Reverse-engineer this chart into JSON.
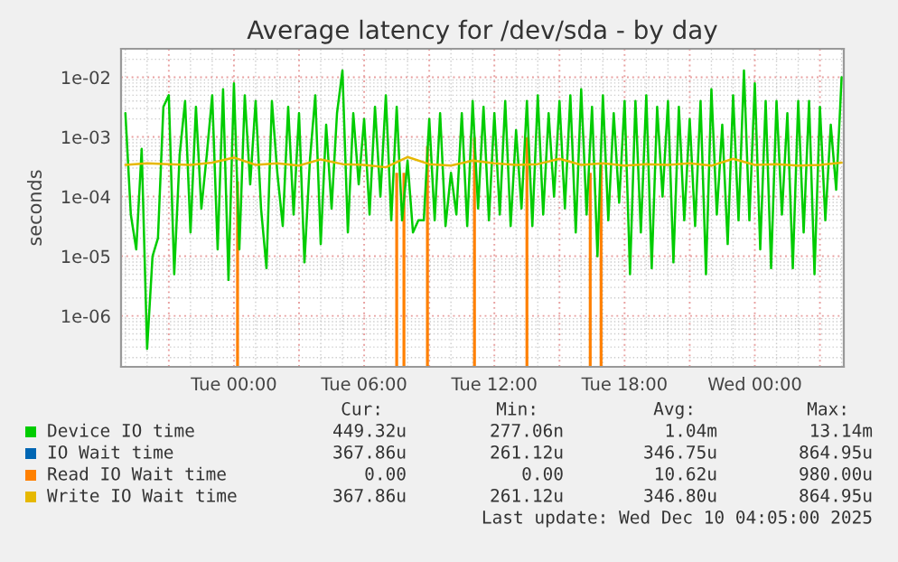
{
  "chart_data": {
    "type": "line",
    "title": "Average latency for /dev/sda - by day",
    "ylabel": "seconds",
    "log": "y",
    "grid": true,
    "legend": "bottom",
    "xlim": [
      "2025-12-08T18:48",
      "2025-12-10T04:06"
    ],
    "xticks": [
      {
        "value": "2025-12-08T21:00",
        "label": null
      },
      {
        "value": "2025-12-09T00:00",
        "label": "Tue 00:00"
      },
      {
        "value": "2025-12-09T03:00",
        "label": null
      },
      {
        "value": "2025-12-09T06:00",
        "label": "Tue 06:00"
      },
      {
        "value": "2025-12-09T09:00",
        "label": null
      },
      {
        "value": "2025-12-09T12:00",
        "label": "Tue 12:00"
      },
      {
        "value": "2025-12-09T15:00",
        "label": null
      },
      {
        "value": "2025-12-09T18:00",
        "label": "Tue 18:00"
      },
      {
        "value": "2025-12-09T21:00",
        "label": null
      },
      {
        "value": "2025-12-10T00:00",
        "label": "Wed 00:00"
      },
      {
        "value": "2025-12-10T03:00",
        "label": null
      }
    ],
    "ylim": [
      1.4e-07,
      0.03
    ],
    "yticks": [
      {
        "value": 1e-06,
        "label": "1e-06"
      },
      {
        "value": 1e-05,
        "label": "1e-05"
      },
      {
        "value": 0.0001,
        "label": "1e-04"
      },
      {
        "value": 0.001,
        "label": "1e-03"
      },
      {
        "value": 0.01,
        "label": "1e-02"
      }
    ],
    "series": [
      {
        "name": "Device IO time",
        "color": "#00cc00",
        "x": [
          "2025-12-08T19:00",
          "2025-12-08T19:15",
          "2025-12-08T19:30",
          "2025-12-08T19:45",
          "2025-12-08T20:00",
          "2025-12-08T20:15",
          "2025-12-08T20:30",
          "2025-12-08T20:45",
          "2025-12-08T21:00",
          "2025-12-08T21:15",
          "2025-12-08T21:30",
          "2025-12-08T21:45",
          "2025-12-08T22:00",
          "2025-12-08T22:15",
          "2025-12-08T22:30",
          "2025-12-08T22:45",
          "2025-12-08T23:00",
          "2025-12-08T23:15",
          "2025-12-08T23:30",
          "2025-12-08T23:45",
          "2025-12-09T00:00",
          "2025-12-09T00:15",
          "2025-12-09T00:30",
          "2025-12-09T00:45",
          "2025-12-09T01:00",
          "2025-12-09T01:15",
          "2025-12-09T01:30",
          "2025-12-09T01:45",
          "2025-12-09T02:00",
          "2025-12-09T02:15",
          "2025-12-09T02:30",
          "2025-12-09T02:45",
          "2025-12-09T03:00",
          "2025-12-09T03:15",
          "2025-12-09T03:30",
          "2025-12-09T03:45",
          "2025-12-09T04:00",
          "2025-12-09T04:15",
          "2025-12-09T04:30",
          "2025-12-09T04:45",
          "2025-12-09T05:00",
          "2025-12-09T05:15",
          "2025-12-09T05:30",
          "2025-12-09T05:45",
          "2025-12-09T06:00",
          "2025-12-09T06:15",
          "2025-12-09T06:30",
          "2025-12-09T06:45",
          "2025-12-09T07:00",
          "2025-12-09T07:15",
          "2025-12-09T07:30",
          "2025-12-09T07:45",
          "2025-12-09T08:00",
          "2025-12-09T08:15",
          "2025-12-09T08:30",
          "2025-12-09T08:45",
          "2025-12-09T09:00",
          "2025-12-09T09:15",
          "2025-12-09T09:30",
          "2025-12-09T09:45",
          "2025-12-09T10:00",
          "2025-12-09T10:15",
          "2025-12-09T10:30",
          "2025-12-09T10:45",
          "2025-12-09T11:00",
          "2025-12-09T11:15",
          "2025-12-09T11:30",
          "2025-12-09T11:45",
          "2025-12-09T12:00",
          "2025-12-09T12:15",
          "2025-12-09T12:30",
          "2025-12-09T12:45",
          "2025-12-09T13:00",
          "2025-12-09T13:15",
          "2025-12-09T13:30",
          "2025-12-09T13:45",
          "2025-12-09T14:00",
          "2025-12-09T14:15",
          "2025-12-09T14:30",
          "2025-12-09T14:45",
          "2025-12-09T15:00",
          "2025-12-09T15:15",
          "2025-12-09T15:30",
          "2025-12-09T15:45",
          "2025-12-09T16:00",
          "2025-12-09T16:15",
          "2025-12-09T16:30",
          "2025-12-09T16:45",
          "2025-12-09T17:00",
          "2025-12-09T17:15",
          "2025-12-09T17:30",
          "2025-12-09T17:45",
          "2025-12-09T18:00",
          "2025-12-09T18:15",
          "2025-12-09T18:30",
          "2025-12-09T18:45",
          "2025-12-09T19:00",
          "2025-12-09T19:15",
          "2025-12-09T19:30",
          "2025-12-09T19:45",
          "2025-12-09T20:00",
          "2025-12-09T20:15",
          "2025-12-09T20:30",
          "2025-12-09T20:45",
          "2025-12-09T21:00",
          "2025-12-09T21:15",
          "2025-12-09T21:30",
          "2025-12-09T21:45",
          "2025-12-09T22:00",
          "2025-12-09T22:15",
          "2025-12-09T22:30",
          "2025-12-09T22:45",
          "2025-12-09T23:00",
          "2025-12-09T23:15",
          "2025-12-09T23:30",
          "2025-12-09T23:45",
          "2025-12-10T00:00",
          "2025-12-10T00:15",
          "2025-12-10T00:30",
          "2025-12-10T00:45",
          "2025-12-10T01:00",
          "2025-12-10T01:15",
          "2025-12-10T01:30",
          "2025-12-10T01:45",
          "2025-12-10T02:00",
          "2025-12-10T02:15",
          "2025-12-10T02:30",
          "2025-12-10T02:45",
          "2025-12-10T03:00",
          "2025-12-10T03:15",
          "2025-12-10T03:30",
          "2025-12-10T03:45",
          "2025-12-10T04:00"
        ],
        "values": [
          0.0025,
          5e-05,
          1.3e-05,
          0.00063,
          2.8e-07,
          1e-05,
          2e-05,
          0.0032,
          0.005,
          5e-06,
          0.0005,
          0.004,
          2.5e-05,
          0.0032,
          6.3e-05,
          0.0005,
          0.005,
          1.3e-05,
          0.0063,
          4e-06,
          0.0079,
          1.3e-05,
          0.005,
          0.00016,
          0.004,
          6.3e-05,
          6.3e-06,
          0.004,
          0.00025,
          3.2e-05,
          0.0032,
          5e-05,
          0.0025,
          7.9e-06,
          0.0004,
          0.005,
          1.6e-05,
          0.0016,
          6.3e-05,
          0.0025,
          0.013,
          2.5e-05,
          0.0025,
          0.00016,
          0.002,
          5e-05,
          0.0032,
          0.0001,
          0.005,
          4e-05,
          0.0032,
          4e-05,
          0.0004,
          2.5e-05,
          4e-05,
          4e-05,
          0.002,
          4e-05,
          0.0025,
          3.2e-05,
          0.00025,
          5e-05,
          0.0025,
          3.2e-05,
          0.004,
          6.3e-05,
          0.0032,
          4e-05,
          0.0025,
          5e-05,
          0.004,
          3.2e-05,
          0.0013,
          6.3e-05,
          0.004,
          3.2e-05,
          0.005,
          5e-05,
          0.0025,
          0.0001,
          0.004,
          6.3e-05,
          0.005,
          2.5e-05,
          0.0063,
          5e-05,
          0.0032,
          1e-05,
          0.005,
          4e-05,
          0.0025,
          7.9e-05,
          0.004,
          5e-06,
          0.004,
          2.5e-05,
          0.005,
          6.3e-06,
          0.0032,
          0.0001,
          0.004,
          7.9e-06,
          0.0032,
          4e-05,
          0.002,
          3.2e-05,
          0.004,
          5e-06,
          0.0063,
          5e-05,
          0.0016,
          1.6e-05,
          0.005,
          4e-05,
          0.013,
          4e-05,
          0.0079,
          1.3e-05,
          0.004,
          6.3e-06,
          0.004,
          5e-05,
          0.0025,
          6.3e-06,
          0.004,
          2.5e-05,
          0.004,
          5e-06,
          0.0032,
          4e-05,
          0.0016,
          0.00013,
          0.01
        ]
      },
      {
        "name": "IO Wait time",
        "color": "#0066b3"
      },
      {
        "name": "Read IO Wait time",
        "color": "#ff8000",
        "type": "bar",
        "x": [
          "2025-12-09T00:10",
          "2025-12-09T07:30",
          "2025-12-09T07:50",
          "2025-12-09T08:55",
          "2025-12-09T11:05",
          "2025-12-09T13:30",
          "2025-12-09T16:25",
          "2025-12-09T16:55"
        ],
        "values": [
          0.00018,
          0.00025,
          0.00025,
          0.0007,
          0.00098,
          0.00098,
          0.00025,
          0.00035
        ]
      },
      {
        "name": "Write IO Wait time",
        "color": "#e6b800",
        "x": [
          "2025-12-08T19:00",
          "2025-12-08T20:00",
          "2025-12-08T21:00",
          "2025-12-08T22:00",
          "2025-12-08T23:00",
          "2025-12-09T00:00",
          "2025-12-09T01:00",
          "2025-12-09T02:00",
          "2025-12-09T03:00",
          "2025-12-09T04:00",
          "2025-12-09T05:00",
          "2025-12-09T06:00",
          "2025-12-09T07:00",
          "2025-12-09T08:00",
          "2025-12-09T09:00",
          "2025-12-09T10:00",
          "2025-12-09T11:00",
          "2025-12-09T12:00",
          "2025-12-09T13:00",
          "2025-12-09T14:00",
          "2025-12-09T15:00",
          "2025-12-09T16:00",
          "2025-12-09T17:00",
          "2025-12-09T18:00",
          "2025-12-09T19:00",
          "2025-12-09T20:00",
          "2025-12-09T21:00",
          "2025-12-09T22:00",
          "2025-12-09T23:00",
          "2025-12-10T00:00",
          "2025-12-10T01:00",
          "2025-12-10T02:00",
          "2025-12-10T03:00",
          "2025-12-10T04:00"
        ],
        "values": [
          0.00034,
          0.00036,
          0.00035,
          0.00034,
          0.00037,
          0.00045,
          0.00034,
          0.00036,
          0.00033,
          0.00042,
          0.00035,
          0.00034,
          0.00031,
          0.00046,
          0.00035,
          0.00033,
          0.0004,
          0.00036,
          0.00034,
          0.00035,
          0.00043,
          0.00034,
          0.00036,
          0.00033,
          0.00035,
          0.00034,
          0.00036,
          0.00033,
          0.00043,
          0.00034,
          0.00035,
          0.00033,
          0.00034,
          0.00037
        ]
      }
    ],
    "annotations": [
      "Cur:",
      "Min:",
      "Avg:",
      "Max:",
      "449.32u",
      "277.06n",
      "1.04m",
      "13.14m",
      "367.86u",
      "261.12u",
      "346.75u",
      "864.95u",
      "0.00",
      "0.00",
      "10.62u",
      "980.00u",
      "367.86u",
      "261.12u",
      "346.80u",
      "864.95u",
      "Last update: Wed Dec 10 04:05:00 2025"
    ]
  }
}
